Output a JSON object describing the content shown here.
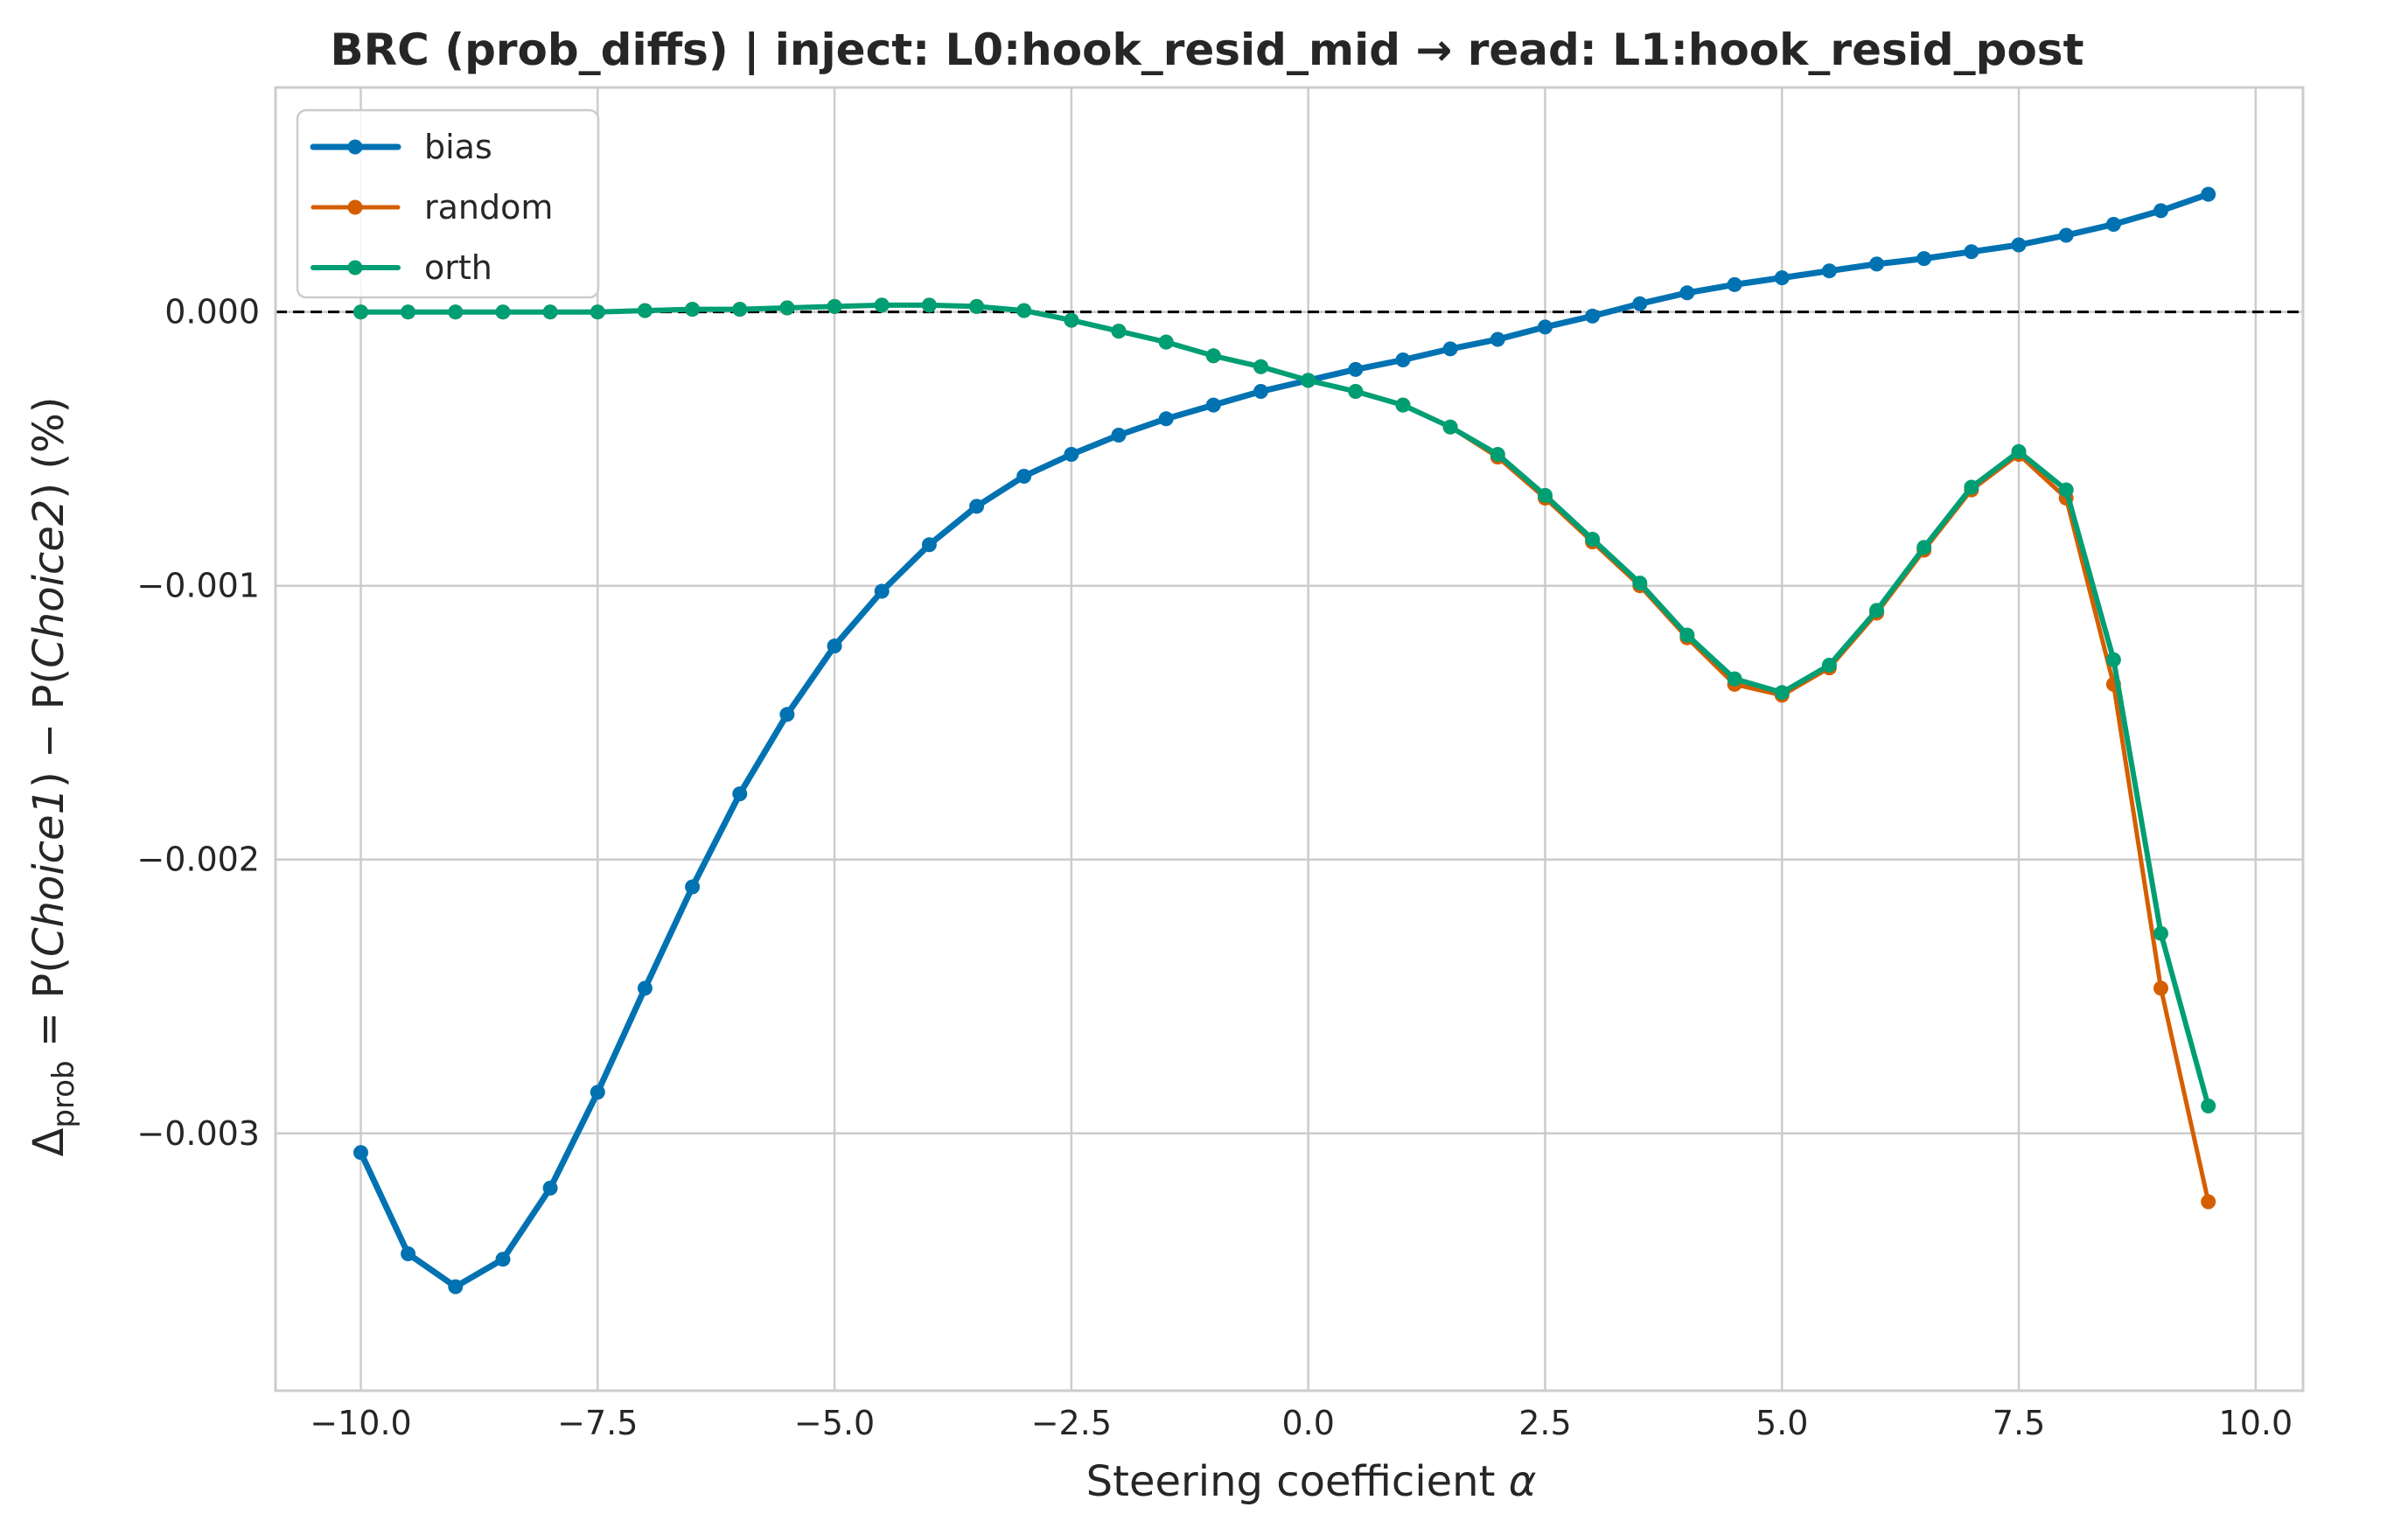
{
  "chart_data": {
    "type": "line",
    "title": "BRC (prob_diffs) | inject: L0:hook_resid_mid → read: L1:hook_resid_post",
    "xlabel_prefix": "Steering coefficient ",
    "xlabel_symbol": "α",
    "ylabel": {
      "delta": "Δ",
      "subscript": "prob",
      "p1": " = P(",
      "c1": "Choice1",
      "mid": ") − P(",
      "c2": "Choice2",
      "end": ") (%)"
    },
    "xlim": [
      -10.9,
      10.5
    ],
    "ylim": [
      -0.00394,
      0.00082
    ],
    "x_ticks": [
      -10.0,
      -7.5,
      -5.0,
      -2.5,
      0.0,
      2.5,
      5.0,
      7.5,
      10.0
    ],
    "x_tick_labels": [
      "−10.0",
      "−7.5",
      "−5.0",
      "−2.5",
      "0.0",
      "2.5",
      "5.0",
      "7.5",
      "10.0"
    ],
    "y_ticks": [
      0.0,
      -0.001,
      -0.002,
      -0.003
    ],
    "y_tick_labels": [
      "0.000",
      "−0.001",
      "−0.002",
      "−0.003"
    ],
    "reference_line": {
      "y": 0,
      "style": "dashed",
      "color": "#000000"
    },
    "grid": true,
    "legend_position": "top-left",
    "x": [
      -10.0,
      -9.5,
      -9.0,
      -8.5,
      -8.0,
      -7.5,
      -7.0,
      -6.5,
      -6.0,
      -5.5,
      -5.0,
      -4.5,
      -4.0,
      -3.5,
      -3.0,
      -2.5,
      -2.0,
      -1.5,
      -1.0,
      -0.5,
      0.0,
      0.5,
      1.0,
      1.5,
      2.0,
      2.5,
      3.0,
      3.5,
      4.0,
      4.5,
      5.0,
      5.5,
      6.0,
      6.5,
      7.0,
      7.5,
      8.0,
      8.5,
      9.0,
      9.5
    ],
    "series": [
      {
        "name": "bias",
        "color": "#0072b2",
        "width": 7,
        "values": [
          -0.00307,
          -0.00344,
          -0.00356,
          -0.00346,
          -0.0032,
          -0.00285,
          -0.00247,
          -0.0021,
          -0.00176,
          -0.00147,
          -0.00122,
          -0.00102,
          -0.00085,
          -0.00071,
          -0.0006,
          -0.00052,
          -0.00045,
          -0.00039,
          -0.00034,
          -0.00029,
          -0.00025,
          -0.00021,
          -0.000175,
          -0.000135,
          -0.0001,
          -5.5e-05,
          -1.5e-05,
          3e-05,
          7e-05,
          0.0001,
          0.000125,
          0.00015,
          0.000175,
          0.000195,
          0.00022,
          0.000245,
          0.00028,
          0.00032,
          0.00037,
          0.00043
        ]
      },
      {
        "name": "random",
        "color": "#d55e00",
        "width": 5,
        "values": [
          0.0,
          0.0,
          0.0,
          0.0,
          0.0,
          0.0,
          5e-06,
          1e-05,
          1e-05,
          1.5e-05,
          2e-05,
          2.5e-05,
          2.5e-05,
          2e-05,
          5e-06,
          -3e-05,
          -7e-05,
          -0.00011,
          -0.00016,
          -0.0002,
          -0.00025,
          -0.00029,
          -0.00034,
          -0.00042,
          -0.00053,
          -0.00068,
          -0.00084,
          -0.001,
          -0.00119,
          -0.00136,
          -0.0014,
          -0.0013,
          -0.0011,
          -0.00087,
          -0.00065,
          -0.00052,
          -0.00068,
          -0.00136,
          -0.00247,
          -0.00325
        ]
      },
      {
        "name": "orth",
        "color": "#009e73",
        "width": 6,
        "values": [
          0.0,
          0.0,
          0.0,
          0.0,
          0.0,
          0.0,
          5e-06,
          1e-05,
          1e-05,
          1.5e-05,
          2e-05,
          2.5e-05,
          2.5e-05,
          2e-05,
          5e-06,
          -3e-05,
          -7e-05,
          -0.00011,
          -0.00016,
          -0.0002,
          -0.00025,
          -0.00029,
          -0.00034,
          -0.00042,
          -0.00052,
          -0.00067,
          -0.00083,
          -0.00099,
          -0.00118,
          -0.00134,
          -0.00139,
          -0.00129,
          -0.00109,
          -0.00086,
          -0.00064,
          -0.00051,
          -0.00065,
          -0.00127,
          -0.00227,
          -0.0029
        ]
      }
    ]
  }
}
